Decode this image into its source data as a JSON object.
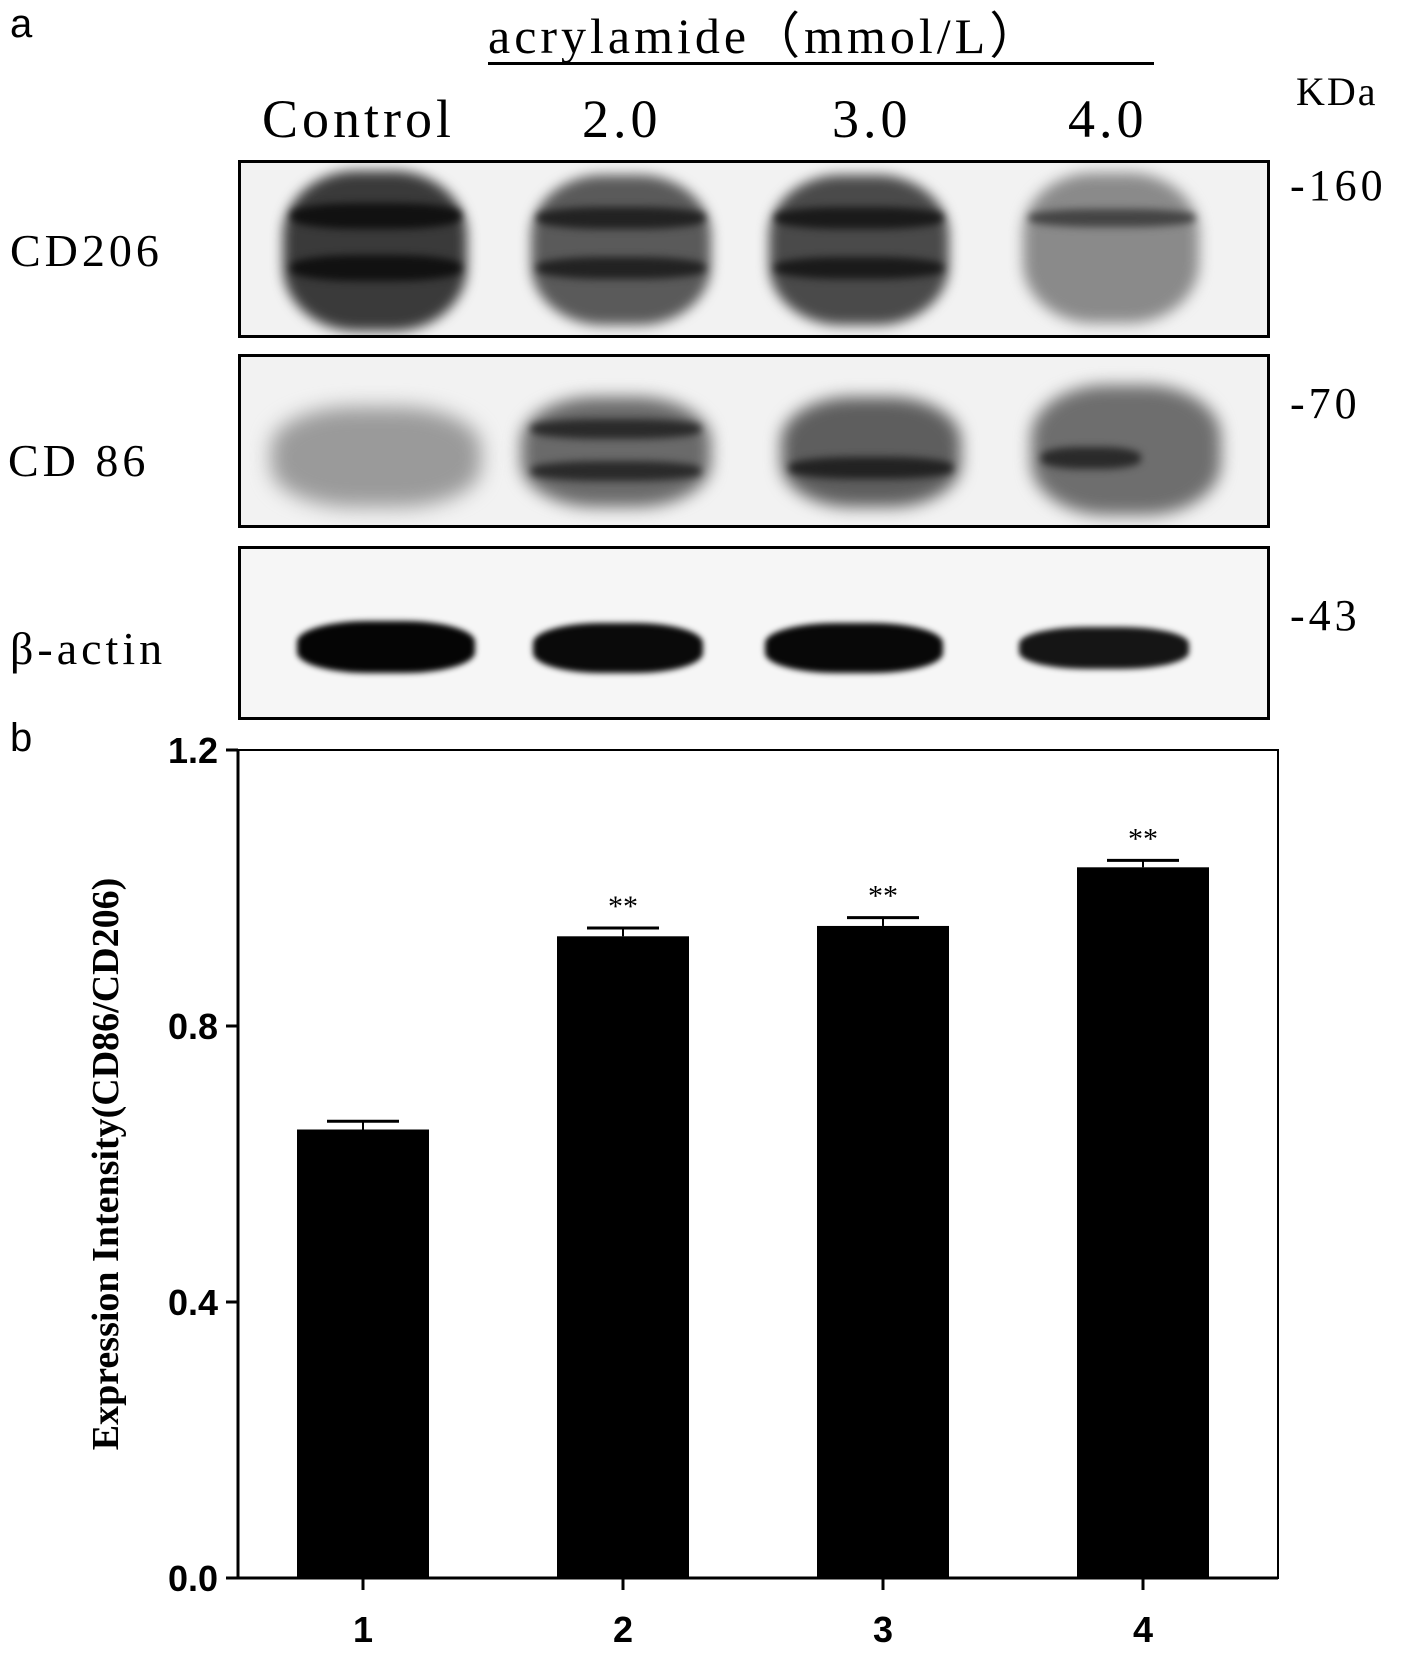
{
  "panel_a": {
    "label": "a",
    "treatment_header": "acrylamide（mmol/L）",
    "kda_header": "KDa",
    "lane_labels": [
      "Control",
      "2.0",
      "3.0",
      "4.0"
    ],
    "rows": [
      {
        "protein": "CD206",
        "marker": "-160"
      },
      {
        "protein": "CD 86",
        "marker": "-70"
      },
      {
        "protein": "β-actin",
        "marker": "-43"
      }
    ]
  },
  "panel_b": {
    "label": "b"
  },
  "chart_data": {
    "type": "bar",
    "title": "",
    "xlabel": "",
    "ylabel": "Expression Intensity(CD86/CD206)",
    "categories": [
      "1",
      "2",
      "3",
      "4"
    ],
    "values": [
      0.65,
      0.93,
      0.945,
      1.03
    ],
    "errors": [
      0.012,
      0.012,
      0.012,
      0.01
    ],
    "annotations": [
      "",
      "**",
      "**",
      "**"
    ],
    "ylim": [
      0,
      1.2
    ],
    "yticks": [
      "0.0",
      "0.4",
      "0.8",
      "1.2"
    ],
    "bar_color": "#000000",
    "grid": false,
    "legend": "none"
  }
}
